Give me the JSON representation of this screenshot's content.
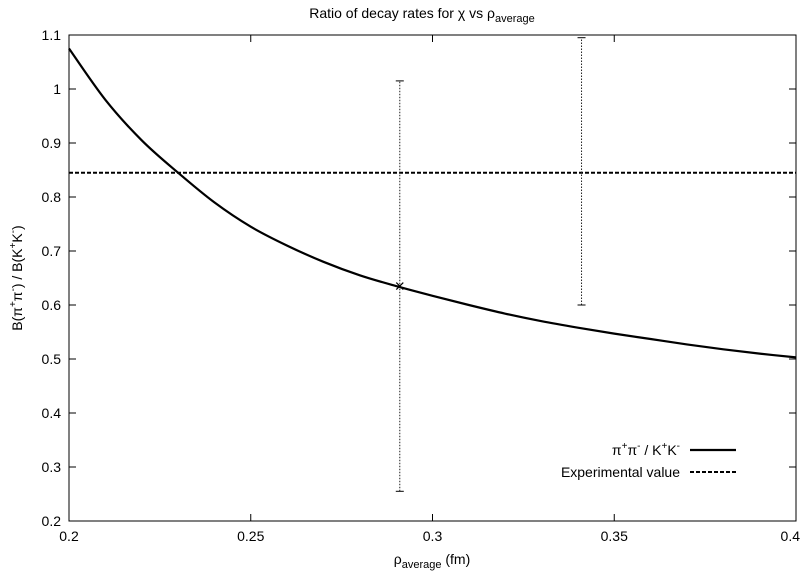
{
  "chart_data": {
    "type": "line",
    "title_parts": [
      "Ratio of decay rates for ",
      "χ",
      " vs ",
      "ρ",
      "average"
    ],
    "xlabel_parts": [
      "ρ",
      "average",
      " (fm)"
    ],
    "ylabel_parts": [
      "B(π",
      "+",
      "π",
      "-",
      ") / B(K",
      "+",
      "K",
      "-",
      ")"
    ],
    "xlim": [
      0.2,
      0.4
    ],
    "ylim": [
      0.2,
      1.1
    ],
    "xticks": [
      0.2,
      0.25,
      0.3,
      0.35,
      0.4
    ],
    "xtick_labels": [
      "0.2",
      "0.25",
      "0.3",
      "0.35",
      "0.4"
    ],
    "yticks": [
      0.2,
      0.3,
      0.4,
      0.5,
      0.6,
      0.7,
      0.8,
      0.9,
      1.0,
      1.1
    ],
    "ytick_labels": [
      "0.2",
      "0.3",
      "0.4",
      "0.5",
      "0.6",
      "0.7",
      "0.8",
      "0.9",
      "1",
      "1.1"
    ],
    "grid": false,
    "legend_position": "bottom-right",
    "series": [
      {
        "legend_parts": [
          "π",
          "+",
          "π",
          "-",
          " / K",
          "+",
          "K",
          "-"
        ],
        "style": "solid",
        "x": [
          0.2,
          0.21,
          0.22,
          0.23,
          0.24,
          0.25,
          0.26,
          0.27,
          0.28,
          0.29,
          0.3,
          0.31,
          0.32,
          0.33,
          0.34,
          0.35,
          0.36,
          0.37,
          0.38,
          0.39,
          0.4
        ],
        "y": [
          1.075,
          0.98,
          0.905,
          0.845,
          0.79,
          0.745,
          0.71,
          0.68,
          0.655,
          0.635,
          0.617,
          0.6,
          0.584,
          0.57,
          0.558,
          0.547,
          0.537,
          0.527,
          0.518,
          0.51,
          0.503
        ]
      },
      {
        "legend_parts": [
          "Experimental value"
        ],
        "style": "dashed",
        "x": [
          0.2,
          0.4
        ],
        "y": [
          0.845,
          0.845
        ]
      }
    ],
    "error_bars": [
      {
        "x": 0.291,
        "y": 0.635,
        "low": 0.255,
        "high": 1.015,
        "marker": "x"
      },
      {
        "x": 0.341,
        "y": 0.845,
        "low": 0.6,
        "high": 1.095,
        "marker": "none"
      }
    ]
  }
}
